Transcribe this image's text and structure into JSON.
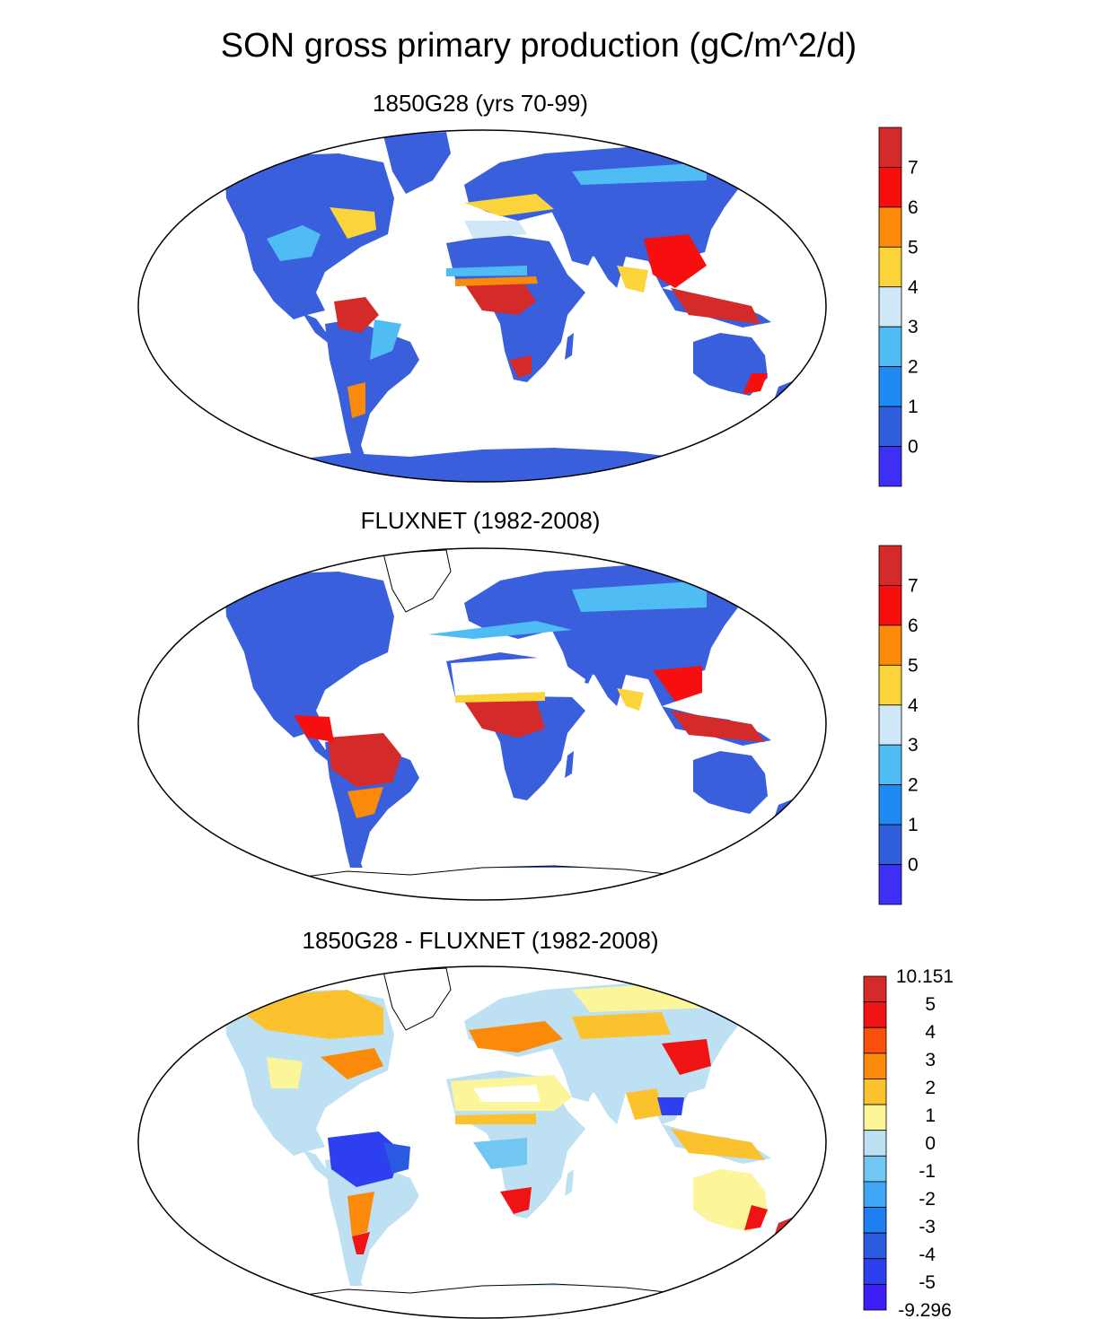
{
  "title": "SON gross primary production (gC/m^2/d)",
  "panels": [
    {
      "title": "1850G28 (yrs 70-99)",
      "colorbar": {
        "labels": [
          "7",
          "6",
          "5",
          "4",
          "3",
          "2",
          "1",
          "0"
        ],
        "colors": [
          "#d42a2a",
          "#f70f0f",
          "#fb8a0b",
          "#fbd33a",
          "#cfe7f7",
          "#4fbdf3",
          "#1f8af2",
          "#2f5fdc",
          "#3d2ff5"
        ]
      }
    },
    {
      "title": "FLUXNET (1982-2008)",
      "colorbar": {
        "labels": [
          "7",
          "6",
          "5",
          "4",
          "3",
          "2",
          "1",
          "0"
        ],
        "colors": [
          "#d42a2a",
          "#f70f0f",
          "#fb8a0b",
          "#fbd33a",
          "#cfe7f7",
          "#4fbdf3",
          "#1f8af2",
          "#2f5fdc",
          "#3d2ff5"
        ]
      }
    },
    {
      "title": "1850G28 - FLUXNET (1982-2008)",
      "colorbar": {
        "labels": [
          "10.151",
          "5",
          "4",
          "3",
          "2",
          "1",
          "0",
          "-1",
          "-2",
          "-3",
          "-4",
          "-5",
          "-9.296"
        ],
        "colors": [
          "#d42a2a",
          "#ef1313",
          "#fb4f0c",
          "#fb8a0b",
          "#fbc22e",
          "#fdf59a",
          "#bde0f3",
          "#72c6f2",
          "#3fa6f5",
          "#1f7ef0",
          "#2a5ae0",
          "#2e3ff0",
          "#3d1ff5"
        ]
      }
    }
  ]
}
